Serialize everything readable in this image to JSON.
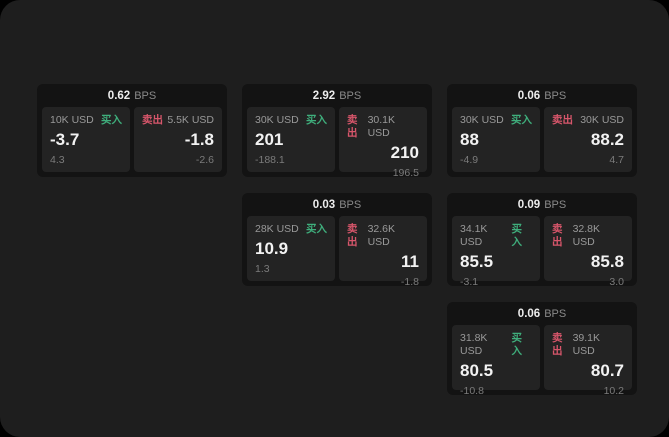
{
  "labels": {
    "bps": "BPS",
    "buy": "买入",
    "sell": "卖出"
  },
  "colors": {
    "buy": "#3fae7c",
    "sell": "#d8566b",
    "page_bg": "#1e1e1e",
    "card_bg": "#131313",
    "panel_bg": "#232323"
  },
  "cards": [
    {
      "bps": "0.62",
      "row": 1,
      "col": 1,
      "buy": {
        "size": "10K USD",
        "main": "-3.7",
        "sub": "4.3"
      },
      "sell": {
        "size": "5.5K USD",
        "main": "-1.8",
        "sub": "-2.6"
      }
    },
    {
      "bps": "2.92",
      "row": 1,
      "col": 2,
      "buy": {
        "size": "30K USD",
        "main": "201",
        "sub": "-188.1"
      },
      "sell": {
        "size": "30.1K USD",
        "main": "210",
        "sub": "196.5"
      }
    },
    {
      "bps": "0.06",
      "row": 1,
      "col": 3,
      "buy": {
        "size": "30K USD",
        "main": "88",
        "sub": "-4.9"
      },
      "sell": {
        "size": "30K USD",
        "main": "88.2",
        "sub": "4.7"
      }
    },
    {
      "bps": "0.03",
      "row": 2,
      "col": 2,
      "buy": {
        "size": "28K USD",
        "main": "10.9",
        "sub": "1.3"
      },
      "sell": {
        "size": "32.6K USD",
        "main": "11",
        "sub": "-1.8"
      }
    },
    {
      "bps": "0.09",
      "row": 2,
      "col": 3,
      "buy": {
        "size": "34.1K USD",
        "main": "85.5",
        "sub": "-3.1"
      },
      "sell": {
        "size": "32.8K USD",
        "main": "85.8",
        "sub": "3.0"
      }
    },
    {
      "bps": "0.06",
      "row": 3,
      "col": 3,
      "buy": {
        "size": "31.8K USD",
        "main": "80.5",
        "sub": "-10.8"
      },
      "sell": {
        "size": "39.1K USD",
        "main": "80.7",
        "sub": "10.2"
      }
    }
  ]
}
